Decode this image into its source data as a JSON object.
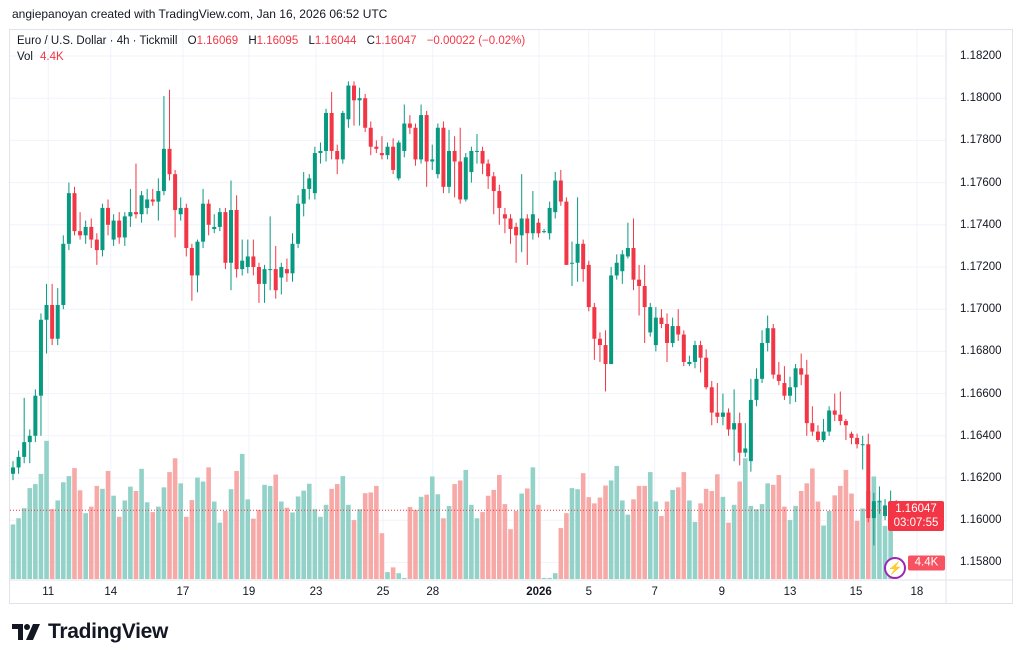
{
  "credit": "angiepanoyan created with TradingView.com, Jan 16, 2026 06:52 UTC",
  "legend": {
    "symbol": "Euro / U.S. Dollar · 4h · Tickmill",
    "o_label": "O",
    "o": "1.16069",
    "h_label": "H",
    "h": "1.16095",
    "l_label": "L",
    "l": "1.16044",
    "c_label": "C",
    "c": "1.16047",
    "change": "−0.00022 (−0.02%)",
    "vol_label": "Vol",
    "vol": "4.4K"
  },
  "price_tag": {
    "price": "1.16047",
    "countdown": "03:07:55"
  },
  "vol_tag": "4.4K",
  "logo": "TradingView",
  "colors": {
    "up": "#089981",
    "down": "#f23645",
    "vol_up": "#92d2c8",
    "vol_down": "#f7a9a7",
    "grid": "#f0f3fa"
  },
  "chart_data": {
    "type": "candlestick",
    "title": "Euro / U.S. Dollar · 4h · Tickmill",
    "ylim": [
      1.1576,
      1.1832
    ],
    "y_ticks": [
      "1.18200",
      "1.18000",
      "1.17800",
      "1.17600",
      "1.17400",
      "1.17200",
      "1.17000",
      "1.16800",
      "1.16600",
      "1.16400",
      "1.16200",
      "1.16000",
      "1.15800"
    ],
    "x_ticks": [
      {
        "label": "11",
        "index": 6.3
      },
      {
        "label": "14",
        "index": 17.5
      },
      {
        "label": "17",
        "index": 30.4
      },
      {
        "label": "19",
        "index": 42.2
      },
      {
        "label": "23",
        "index": 54.2
      },
      {
        "label": "25",
        "index": 66.2
      },
      {
        "label": "28",
        "index": 75.1
      },
      {
        "label": "2026",
        "index": 94.1,
        "bold": true
      },
      {
        "label": "5",
        "index": 103
      },
      {
        "label": "7",
        "index": 114.8
      },
      {
        "label": "9",
        "index": 126.8
      },
      {
        "label": "13",
        "index": 139
      },
      {
        "label": "15",
        "index": 150.8
      },
      {
        "label": "18",
        "index": 161.7
      }
    ],
    "last_price": 1.16047,
    "ohlc": [
      [
        1.1622,
        1.1628,
        1.1619,
        1.1625
      ],
      [
        1.1625,
        1.1633,
        1.1622,
        1.163
      ],
      [
        1.163,
        1.1658,
        1.1627,
        1.1637
      ],
      [
        1.1637,
        1.1643,
        1.1627,
        1.164
      ],
      [
        1.164,
        1.1662,
        1.1637,
        1.1659
      ],
      [
        1.1659,
        1.1698,
        1.164,
        1.1695
      ],
      [
        1.1695,
        1.1712,
        1.1679,
        1.1702
      ],
      [
        1.1702,
        1.1712,
        1.1683,
        1.1686
      ],
      [
        1.1686,
        1.171,
        1.1683,
        1.1702
      ],
      [
        1.1702,
        1.1735,
        1.17,
        1.1731
      ],
      [
        1.1731,
        1.176,
        1.1728,
        1.1755
      ],
      [
        1.1755,
        1.1758,
        1.1735,
        1.1737
      ],
      [
        1.1737,
        1.1746,
        1.1733,
        1.1735
      ],
      [
        1.1735,
        1.1742,
        1.1731,
        1.1739
      ],
      [
        1.1739,
        1.1743,
        1.1729,
        1.1733
      ],
      [
        1.1733,
        1.1736,
        1.1721,
        1.1728
      ],
      [
        1.1728,
        1.175,
        1.1725,
        1.1748
      ],
      [
        1.1748,
        1.1752,
        1.1735,
        1.174
      ],
      [
        1.1733,
        1.1745,
        1.173,
        1.1742
      ],
      [
        1.1742,
        1.1746,
        1.1731,
        1.1734
      ],
      [
        1.1734,
        1.1746,
        1.173,
        1.1744
      ],
      [
        1.1744,
        1.1757,
        1.1739,
        1.1746
      ],
      [
        1.1746,
        1.1769,
        1.1743,
        1.1745
      ],
      [
        1.1745,
        1.1756,
        1.1741,
        1.1754
      ],
      [
        1.1748,
        1.1757,
        1.1745,
        1.1752
      ],
      [
        1.1752,
        1.1757,
        1.1749,
        1.1751
      ],
      [
        1.1751,
        1.1762,
        1.1742,
        1.1756
      ],
      [
        1.1756,
        1.1801,
        1.1754,
        1.1776
      ],
      [
        1.1776,
        1.1804,
        1.1761,
        1.1764
      ],
      [
        1.1764,
        1.1766,
        1.1734,
        1.1747
      ],
      [
        1.1745,
        1.1753,
        1.1742,
        1.1748
      ],
      [
        1.1748,
        1.175,
        1.1725,
        1.1729
      ],
      [
        1.1729,
        1.1731,
        1.1704,
        1.1716
      ],
      [
        1.1716,
        1.1733,
        1.1708,
        1.1732
      ],
      [
        1.1732,
        1.1757,
        1.1729,
        1.175
      ],
      [
        1.175,
        1.1752,
        1.1735,
        1.174
      ],
      [
        1.1738,
        1.1745,
        1.1736,
        1.1739
      ],
      [
        1.1739,
        1.1748,
        1.1737,
        1.1746
      ],
      [
        1.1746,
        1.1748,
        1.1719,
        1.1722
      ],
      [
        1.1722,
        1.1761,
        1.1709,
        1.1747
      ],
      [
        1.1747,
        1.1754,
        1.1715,
        1.1719
      ],
      [
        1.1719,
        1.1733,
        1.1716,
        1.1723
      ],
      [
        1.172,
        1.1733,
        1.1717,
        1.1725
      ],
      [
        1.1725,
        1.1733,
        1.1716,
        1.172
      ],
      [
        1.172,
        1.1722,
        1.1703,
        1.1712
      ],
      [
        1.1712,
        1.1721,
        1.1703,
        1.1719
      ],
      [
        1.1719,
        1.1744,
        1.1709,
        1.1719
      ],
      [
        1.1719,
        1.173,
        1.1705,
        1.1709
      ],
      [
        1.1715,
        1.1722,
        1.1707,
        1.172
      ],
      [
        1.1719,
        1.1724,
        1.1713,
        1.1717
      ],
      [
        1.1717,
        1.1736,
        1.1713,
        1.1731
      ],
      [
        1.1731,
        1.1754,
        1.1729,
        1.175
      ],
      [
        1.175,
        1.1765,
        1.1744,
        1.1757
      ],
      [
        1.1757,
        1.1764,
        1.1752,
        1.1762
      ],
      [
        1.1755,
        1.1777,
        1.1752,
        1.1774
      ],
      [
        1.1774,
        1.1779,
        1.1769,
        1.1775
      ],
      [
        1.1775,
        1.1795,
        1.177,
        1.1793
      ],
      [
        1.1793,
        1.1803,
        1.1771,
        1.1775
      ],
      [
        1.1775,
        1.1778,
        1.1764,
        1.1771
      ],
      [
        1.1771,
        1.1794,
        1.1769,
        1.1793
      ],
      [
        1.179,
        1.1808,
        1.1786,
        1.1806
      ],
      [
        1.1806,
        1.1808,
        1.1787,
        1.1799
      ],
      [
        1.1799,
        1.1805,
        1.1787,
        1.18
      ],
      [
        1.18,
        1.1802,
        1.1784,
        1.1786
      ],
      [
        1.1786,
        1.1789,
        1.1773,
        1.1777
      ],
      [
        1.1777,
        1.178,
        1.1774,
        1.1776
      ],
      [
        1.1774,
        1.1782,
        1.1771,
        1.1773
      ],
      [
        1.1773,
        1.1779,
        1.1771,
        1.1777
      ],
      [
        1.1777,
        1.1781,
        1.1764,
        1.1766
      ],
      [
        1.1762,
        1.178,
        1.1761,
        1.1779
      ],
      [
        1.1775,
        1.1797,
        1.1772,
        1.1788
      ],
      [
        1.1788,
        1.1792,
        1.1783,
        1.1786
      ],
      [
        1.1786,
        1.1788,
        1.1768,
        1.1771
      ],
      [
        1.1771,
        1.1797,
        1.1769,
        1.1792
      ],
      [
        1.1792,
        1.1794,
        1.1758,
        1.177
      ],
      [
        1.177,
        1.1778,
        1.1766,
        1.1771
      ],
      [
        1.1764,
        1.1788,
        1.1762,
        1.1786
      ],
      [
        1.1786,
        1.1789,
        1.1755,
        1.1758
      ],
      [
        1.1758,
        1.1785,
        1.1755,
        1.1775
      ],
      [
        1.1775,
        1.1782,
        1.1753,
        1.177
      ],
      [
        1.177,
        1.1786,
        1.175,
        1.1752
      ],
      [
        1.1752,
        1.1774,
        1.1751,
        1.1772
      ],
      [
        1.1765,
        1.1777,
        1.176,
        1.1775
      ],
      [
        1.1775,
        1.1783,
        1.1769,
        1.1775
      ],
      [
        1.1775,
        1.1777,
        1.1764,
        1.1769
      ],
      [
        1.1769,
        1.1771,
        1.1757,
        1.1763
      ],
      [
        1.1763,
        1.1765,
        1.1745,
        1.1756
      ],
      [
        1.1756,
        1.1759,
        1.174,
        1.1748
      ],
      [
        1.1745,
        1.1748,
        1.1736,
        1.1743
      ],
      [
        1.1743,
        1.1745,
        1.1731,
        1.1738
      ],
      [
        1.1739,
        1.1741,
        1.1722,
        1.1735
      ],
      [
        1.1735,
        1.1764,
        1.1727,
        1.1743
      ],
      [
        1.1743,
        1.1745,
        1.1721,
        1.1736
      ],
      [
        1.1736,
        1.1756,
        1.1733,
        1.1745
      ],
      [
        1.1741,
        1.1743,
        1.1734,
        1.1736
      ],
      [
        1.1737,
        1.1738,
        1.1736,
        1.1737
      ],
      [
        1.1736,
        1.1751,
        1.1733,
        1.1748
      ],
      [
        1.1746,
        1.1765,
        1.1743,
        1.1761
      ],
      [
        1.1761,
        1.1766,
        1.1749,
        1.1751
      ],
      [
        1.1751,
        1.1753,
        1.1721,
        1.1721
      ],
      [
        1.1722,
        1.1732,
        1.1711,
        1.1722
      ],
      [
        1.1722,
        1.1753,
        1.1713,
        1.1731
      ],
      [
        1.1731,
        1.1733,
        1.1713,
        1.1719
      ],
      [
        1.1721,
        1.1723,
        1.1699,
        1.1701
      ],
      [
        1.1701,
        1.1703,
        1.1676,
        1.1686
      ],
      [
        1.1686,
        1.1689,
        1.1675,
        1.1683
      ],
      [
        1.1683,
        1.169,
        1.1661,
        1.1674
      ],
      [
        1.1674,
        1.172,
        1.1674,
        1.1716
      ],
      [
        1.1716,
        1.1726,
        1.1714,
        1.1722
      ],
      [
        1.1718,
        1.1728,
        1.1712,
        1.1726
      ],
      [
        1.1725,
        1.1741,
        1.1724,
        1.1729
      ],
      [
        1.1729,
        1.1743,
        1.1709,
        1.1714
      ],
      [
        1.1714,
        1.1721,
        1.1697,
        1.1711
      ],
      [
        1.1711,
        1.1721,
        1.1684,
        1.1701
      ],
      [
        1.1689,
        1.1703,
        1.1687,
        1.1701
      ],
      [
        1.1683,
        1.1701,
        1.168,
        1.1696
      ],
      [
        1.1696,
        1.17,
        1.1691,
        1.1693
      ],
      [
        1.1693,
        1.1698,
        1.1675,
        1.1684
      ],
      [
        1.1684,
        1.1696,
        1.1682,
        1.1692
      ],
      [
        1.1692,
        1.17,
        1.1685,
        1.1688
      ],
      [
        1.1688,
        1.169,
        1.1673,
        1.1675
      ],
      [
        1.1674,
        1.1678,
        1.1673,
        1.1675
      ],
      [
        1.1675,
        1.1685,
        1.1672,
        1.1683
      ],
      [
        1.1683,
        1.1685,
        1.167,
        1.1677
      ],
      [
        1.1677,
        1.1681,
        1.1662,
        1.1663
      ],
      [
        1.1663,
        1.1666,
        1.1645,
        1.1651
      ],
      [
        1.1651,
        1.1665,
        1.1646,
        1.1649
      ],
      [
        1.1649,
        1.166,
        1.1645,
        1.1651
      ],
      [
        1.1651,
        1.1653,
        1.164,
        1.1643
      ],
      [
        1.1643,
        1.1662,
        1.1628,
        1.1646
      ],
      [
        1.1646,
        1.1651,
        1.1626,
        1.1632
      ],
      [
        1.1632,
        1.1646,
        1.163,
        1.1634
      ],
      [
        1.1628,
        1.1667,
        1.1623,
        1.1657
      ],
      [
        1.1657,
        1.1672,
        1.1654,
        1.1667
      ],
      [
        1.1667,
        1.169,
        1.1665,
        1.1684
      ],
      [
        1.1684,
        1.1697,
        1.168,
        1.1691
      ],
      [
        1.1691,
        1.1693,
        1.1667,
        1.1669
      ],
      [
        1.1669,
        1.1675,
        1.1664,
        1.1666
      ],
      [
        1.1665,
        1.1673,
        1.1657,
        1.1659
      ],
      [
        1.1659,
        1.1668,
        1.1655,
        1.1663
      ],
      [
        1.1663,
        1.1674,
        1.1656,
        1.1672
      ],
      [
        1.1672,
        1.1679,
        1.1664,
        1.1669
      ],
      [
        1.1669,
        1.1676,
        1.164,
        1.1646
      ],
      [
        1.1646,
        1.1654,
        1.164,
        1.1642
      ],
      [
        1.1642,
        1.1645,
        1.1637,
        1.1638
      ],
      [
        1.1638,
        1.1648,
        1.1637,
        1.1642
      ],
      [
        1.1642,
        1.1654,
        1.164,
        1.1652
      ],
      [
        1.1652,
        1.166,
        1.1647,
        1.165
      ],
      [
        1.165,
        1.1661,
        1.1645,
        1.1647
      ],
      [
        1.1647,
        1.1648,
        1.1638,
        1.1645
      ],
      [
        1.1641,
        1.1642,
        1.1636,
        1.1639
      ],
      [
        1.1639,
        1.1641,
        1.1634,
        1.1636
      ],
      [
        1.1636,
        1.164,
        1.1624,
        1.1636
      ],
      [
        1.1636,
        1.1641,
        1.1599,
        1.1601
      ],
      [
        1.1601,
        1.1613,
        1.1588,
        1.1609
      ],
      [
        1.1609,
        1.1616,
        1.1603,
        1.1609
      ],
      [
        1.1602,
        1.161,
        1.16,
        1.1607
      ],
      [
        1.1607,
        1.1614,
        1.1606,
        1.1607
      ],
      [
        1.16069,
        1.16095,
        1.16044,
        1.16047
      ]
    ],
    "volume_k": [
      15.0,
      16.7,
      19.5,
      25.0,
      26.1,
      28.9,
      38.0,
      19.2,
      21.6,
      26.6,
      28.3,
      30.5,
      24.4,
      18.1,
      19.9,
      25.6,
      24.8,
      29.7,
      22.9,
      17.1,
      21.6,
      25.4,
      24.2,
      30.3,
      21.1,
      18.4,
      19.9,
      25.2,
      29.4,
      33.2,
      26.3,
      17.1,
      21.7,
      27.9,
      26.8,
      30.7,
      21.3,
      15.5,
      18.7,
      24.7,
      29.7,
      34.4,
      21.9,
      16.6,
      19.0,
      25.9,
      25.6,
      28.7,
      21.3,
      19.6,
      18.3,
      22.7,
      24.3,
      26.2,
      19.2,
      17.1,
      20.4,
      24.8,
      26.1,
      28.3,
      20.4,
      16.2,
      19.2,
      23.6,
      23.8,
      25.6,
      12.6,
      1.9,
      3.2,
      1.6,
      0.3,
      19.8,
      19.0,
      22.6,
      23.2,
      28.2,
      23.3,
      16.7,
      20.1,
      26.1,
      27.1,
      30.0,
      20.4,
      16.7,
      18.4,
      22.9,
      24.5,
      28.6,
      20.6,
      13.7,
      18.7,
      23.5,
      24.9,
      30.7,
      20.4,
      0.3,
      0.3,
      1.6,
      14.0,
      18.1,
      25.0,
      24.7,
      29.1,
      22.5,
      20.8,
      22.4,
      25.7,
      27.1,
      31.1,
      21.6,
      17.7,
      21.9,
      25.6,
      25.6,
      29.4,
      21.3,
      17.3,
      21.3,
      24.5,
      25.2,
      29.4,
      21.6,
      15.7,
      20.8,
      24.8,
      24.2,
      28.8,
      22.6,
      15.5,
      20.4,
      26.8,
      33.2,
      20.1,
      19.2,
      20.6,
      26.3,
      25.9,
      28.6,
      19.9,
      16.2,
      20.1,
      24.2,
      26.3,
      30.4,
      21.3,
      14.7,
      18.7,
      23.0,
      25.6,
      30.0,
      23.5,
      16.0,
      19.4,
      24.2,
      28.2,
      21.6,
      14.6,
      19.0,
      4.4
    ]
  }
}
